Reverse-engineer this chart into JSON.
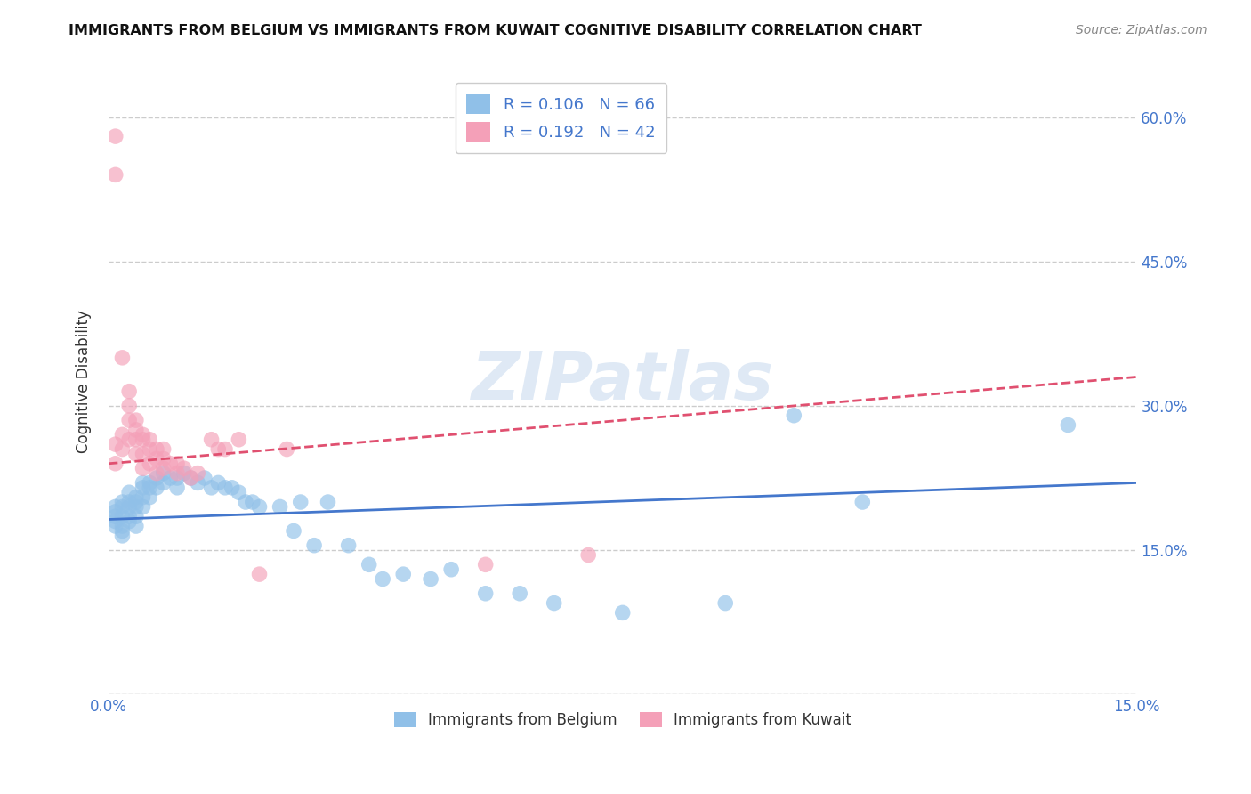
{
  "title": "IMMIGRANTS FROM BELGIUM VS IMMIGRANTS FROM KUWAIT COGNITIVE DISABILITY CORRELATION CHART",
  "source": "Source: ZipAtlas.com",
  "ylabel": "Cognitive Disability",
  "xlim": [
    0.0,
    0.15
  ],
  "ylim": [
    0.0,
    0.65
  ],
  "xticks": [
    0.0,
    0.03,
    0.06,
    0.09,
    0.12,
    0.15
  ],
  "xticklabels": [
    "0.0%",
    "",
    "",
    "",
    "",
    "15.0%"
  ],
  "yticks": [
    0.0,
    0.15,
    0.3,
    0.45,
    0.6
  ],
  "yticklabels": [
    "",
    "15.0%",
    "30.0%",
    "45.0%",
    "60.0%"
  ],
  "grid_color": "#cccccc",
  "background_color": "#ffffff",
  "belgium_color": "#90c0e8",
  "kuwait_color": "#f4a0b8",
  "belgium_line_color": "#4477cc",
  "kuwait_line_color": "#e05070",
  "R_belgium": 0.106,
  "N_belgium": 66,
  "R_kuwait": 0.192,
  "N_kuwait": 42,
  "legend_label_belgium": "Immigrants from Belgium",
  "legend_label_kuwait": "Immigrants from Kuwait",
  "watermark": "ZIPatlas",
  "belgium_x": [
    0.001,
    0.001,
    0.001,
    0.001,
    0.001,
    0.002,
    0.002,
    0.002,
    0.002,
    0.002,
    0.002,
    0.003,
    0.003,
    0.003,
    0.003,
    0.003,
    0.004,
    0.004,
    0.004,
    0.004,
    0.004,
    0.005,
    0.005,
    0.005,
    0.005,
    0.006,
    0.006,
    0.006,
    0.007,
    0.007,
    0.008,
    0.008,
    0.009,
    0.01,
    0.01,
    0.011,
    0.012,
    0.013,
    0.014,
    0.015,
    0.016,
    0.017,
    0.018,
    0.019,
    0.02,
    0.021,
    0.022,
    0.025,
    0.027,
    0.028,
    0.03,
    0.032,
    0.035,
    0.038,
    0.04,
    0.043,
    0.047,
    0.05,
    0.055,
    0.06,
    0.065,
    0.075,
    0.09,
    0.1,
    0.11,
    0.14
  ],
  "belgium_y": [
    0.195,
    0.19,
    0.185,
    0.18,
    0.175,
    0.2,
    0.195,
    0.185,
    0.175,
    0.17,
    0.165,
    0.21,
    0.2,
    0.195,
    0.185,
    0.18,
    0.205,
    0.2,
    0.195,
    0.185,
    0.175,
    0.22,
    0.215,
    0.205,
    0.195,
    0.22,
    0.215,
    0.205,
    0.225,
    0.215,
    0.23,
    0.22,
    0.225,
    0.225,
    0.215,
    0.23,
    0.225,
    0.22,
    0.225,
    0.215,
    0.22,
    0.215,
    0.215,
    0.21,
    0.2,
    0.2,
    0.195,
    0.195,
    0.17,
    0.2,
    0.155,
    0.2,
    0.155,
    0.135,
    0.12,
    0.125,
    0.12,
    0.13,
    0.105,
    0.105,
    0.095,
    0.085,
    0.095,
    0.29,
    0.2,
    0.28
  ],
  "kuwait_x": [
    0.001,
    0.001,
    0.001,
    0.001,
    0.002,
    0.002,
    0.002,
    0.003,
    0.003,
    0.003,
    0.003,
    0.004,
    0.004,
    0.004,
    0.004,
    0.005,
    0.005,
    0.005,
    0.005,
    0.006,
    0.006,
    0.006,
    0.007,
    0.007,
    0.007,
    0.008,
    0.008,
    0.008,
    0.009,
    0.01,
    0.01,
    0.011,
    0.012,
    0.013,
    0.015,
    0.016,
    0.017,
    0.019,
    0.022,
    0.026,
    0.055,
    0.07
  ],
  "kuwait_y": [
    0.58,
    0.54,
    0.26,
    0.24,
    0.35,
    0.27,
    0.255,
    0.315,
    0.3,
    0.285,
    0.265,
    0.285,
    0.275,
    0.265,
    0.25,
    0.27,
    0.265,
    0.25,
    0.235,
    0.265,
    0.255,
    0.24,
    0.255,
    0.245,
    0.23,
    0.255,
    0.245,
    0.235,
    0.24,
    0.24,
    0.23,
    0.235,
    0.225,
    0.23,
    0.265,
    0.255,
    0.255,
    0.265,
    0.125,
    0.255,
    0.135,
    0.145
  ]
}
